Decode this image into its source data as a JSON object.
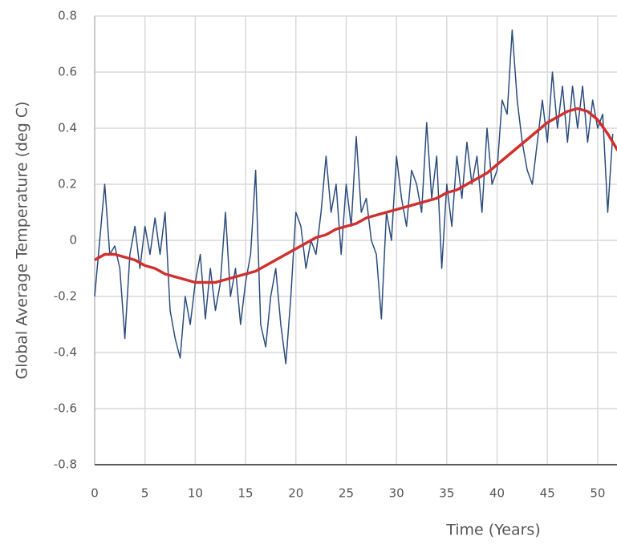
{
  "chart_data": {
    "type": "line",
    "xlabel": "Time (Years)",
    "ylabel": "Global Average Temperature (deg C)",
    "xlim": [
      0,
      52
    ],
    "xticks": [
      0,
      5,
      10,
      15,
      20,
      25,
      30,
      35,
      40,
      45,
      50
    ],
    "ylim": [
      -0.8,
      0.8
    ],
    "yticks": [
      0.8,
      0.6,
      0.4,
      0.2,
      0,
      -0.2,
      -0.4,
      -0.6,
      -0.8
    ],
    "grid": true,
    "series": [
      {
        "color": "#2c4d7d",
        "width": 1.5,
        "x": [
          0,
          0.5,
          1,
          1.5,
          2,
          2.5,
          3,
          3.5,
          4,
          4.5,
          5,
          5.5,
          6,
          6.5,
          7,
          7.5,
          8,
          8.5,
          9,
          9.5,
          10,
          10.5,
          11,
          11.5,
          12,
          12.5,
          13,
          13.5,
          14,
          14.5,
          15,
          15.5,
          16,
          16.5,
          17,
          17.5,
          18,
          18.5,
          19,
          19.5,
          20,
          20.5,
          21,
          21.5,
          22,
          22.5,
          23,
          23.5,
          24,
          24.5,
          25,
          25.5,
          26,
          26.5,
          27,
          27.5,
          28,
          28.5,
          29,
          29.5,
          30,
          30.5,
          31,
          31.5,
          32,
          32.5,
          33,
          33.5,
          34,
          34.5,
          35,
          35.5,
          36,
          36.5,
          37,
          37.5,
          38,
          38.5,
          39,
          39.5,
          40,
          40.5,
          41,
          41.5,
          42,
          42.5,
          43,
          43.5,
          44,
          44.5,
          45,
          45.5,
          46,
          46.5,
          47,
          47.5,
          48,
          48.5,
          49,
          49.5,
          50,
          50.5,
          51,
          51.5
        ],
        "values": [
          -0.2,
          0.0,
          0.2,
          -0.05,
          -0.02,
          -0.1,
          -0.35,
          -0.05,
          0.05,
          -0.1,
          0.05,
          -0.05,
          0.08,
          -0.05,
          0.1,
          -0.25,
          -0.35,
          -0.42,
          -0.2,
          -0.3,
          -0.15,
          -0.05,
          -0.28,
          -0.1,
          -0.25,
          -0.15,
          0.1,
          -0.2,
          -0.1,
          -0.3,
          -0.15,
          -0.05,
          0.25,
          -0.3,
          -0.38,
          -0.2,
          -0.1,
          -0.3,
          -0.44,
          -0.2,
          0.1,
          0.05,
          -0.1,
          0.0,
          -0.05,
          0.1,
          0.3,
          0.1,
          0.2,
          -0.05,
          0.2,
          0.05,
          0.37,
          0.1,
          0.15,
          0.0,
          -0.05,
          -0.28,
          0.1,
          0.0,
          0.3,
          0.15,
          0.05,
          0.25,
          0.2,
          0.1,
          0.42,
          0.15,
          0.3,
          -0.1,
          0.2,
          0.05,
          0.3,
          0.15,
          0.35,
          0.2,
          0.3,
          0.1,
          0.4,
          0.2,
          0.25,
          0.5,
          0.45,
          0.75,
          0.5,
          0.35,
          0.25,
          0.2,
          0.35,
          0.5,
          0.35,
          0.6,
          0.4,
          0.55,
          0.35,
          0.55,
          0.4,
          0.55,
          0.35,
          0.5,
          0.4,
          0.45,
          0.1,
          0.38
        ]
      },
      {
        "color": "#d0302e",
        "width": 3.5,
        "x": [
          0,
          1,
          2,
          3,
          4,
          5,
          6,
          7,
          8,
          9,
          10,
          11,
          12,
          13,
          14,
          15,
          16,
          17,
          18,
          19,
          20,
          21,
          22,
          23,
          24,
          25,
          26,
          27,
          28,
          29,
          30,
          31,
          32,
          33,
          34,
          35,
          36,
          37,
          38,
          39,
          40,
          41,
          42,
          43,
          44,
          45,
          46,
          47,
          48,
          49,
          50,
          51,
          52
        ],
        "values": [
          -0.07,
          -0.05,
          -0.05,
          -0.06,
          -0.07,
          -0.09,
          -0.1,
          -0.12,
          -0.13,
          -0.14,
          -0.15,
          -0.15,
          -0.15,
          -0.14,
          -0.13,
          -0.12,
          -0.11,
          -0.09,
          -0.07,
          -0.05,
          -0.03,
          -0.01,
          0.01,
          0.02,
          0.04,
          0.05,
          0.06,
          0.08,
          0.09,
          0.1,
          0.11,
          0.12,
          0.13,
          0.14,
          0.15,
          0.17,
          0.18,
          0.2,
          0.22,
          0.24,
          0.27,
          0.3,
          0.33,
          0.36,
          0.39,
          0.42,
          0.44,
          0.46,
          0.47,
          0.46,
          0.43,
          0.38,
          0.32
        ]
      }
    ]
  }
}
